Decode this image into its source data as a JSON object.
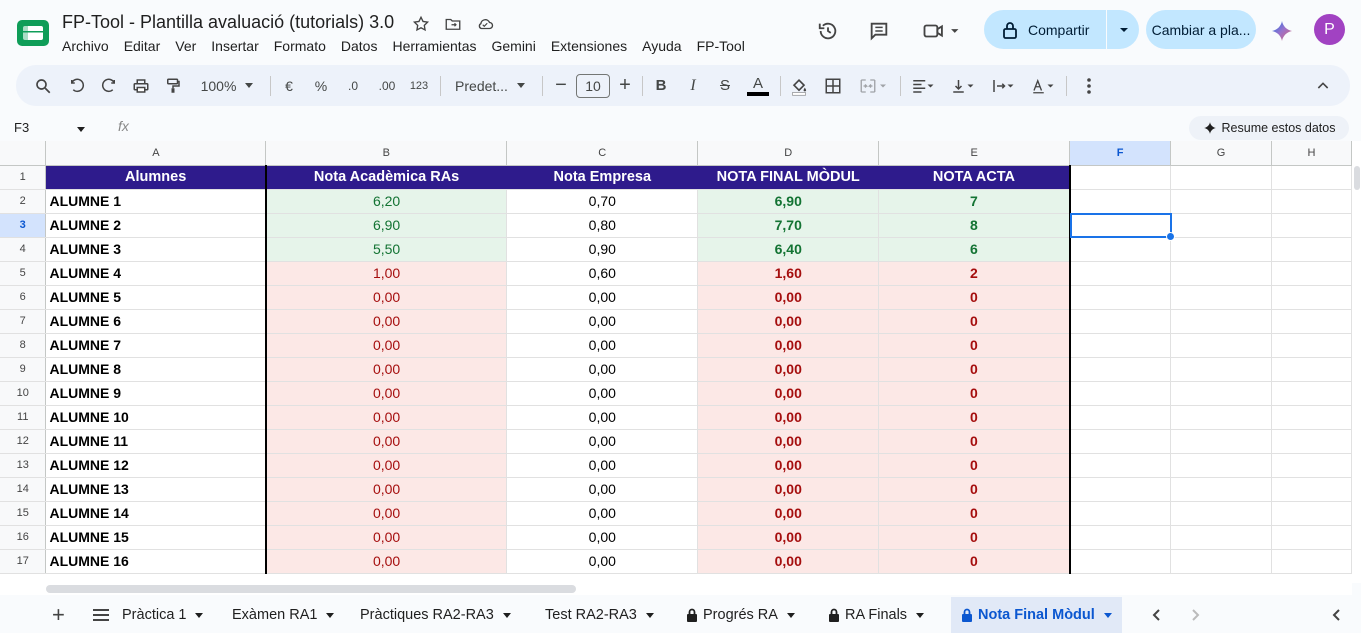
{
  "app": {
    "doc_title": "FP-Tool - Plantilla avaluació (tutorials) 3.0",
    "menu": [
      "Archivo",
      "Editar",
      "Ver",
      "Insertar",
      "Formato",
      "Datos",
      "Herramientas",
      "Gemini",
      "Extensiones",
      "Ayuda",
      "FP-Tool"
    ],
    "share_label": "Compartir",
    "switch_label": "Cambiar a pla...",
    "avatar_initial": "P"
  },
  "toolbar": {
    "zoom": "100%",
    "currency": "€",
    "percent": "%",
    "dec_less": ".0",
    "dec_more": ".00",
    "number_format": "123",
    "font": "Predet...",
    "font_size": "10",
    "bold": "B",
    "italic": "I",
    "strike": "S",
    "text_color": "A"
  },
  "formula_bar": {
    "name_box": "F3",
    "fx": "fx",
    "summarize": "Resume estos datos"
  },
  "grid": {
    "columns": [
      "A",
      "B",
      "C",
      "D",
      "E",
      "F",
      "G",
      "H"
    ],
    "headers": [
      "Alumnes",
      "Nota Acadèmica RAs",
      "Nota Empresa",
      "NOTA FINAL MÒDUL",
      "NOTA ACTA"
    ],
    "rows": [
      {
        "num": "2",
        "name": "ALUMNE 1",
        "b": "6,20",
        "c": "0,70",
        "d": "6,90",
        "e": "7",
        "status": "pass"
      },
      {
        "num": "3",
        "name": "ALUMNE 2",
        "b": "6,90",
        "c": "0,80",
        "d": "7,70",
        "e": "8",
        "status": "pass"
      },
      {
        "num": "4",
        "name": "ALUMNE 3",
        "b": "5,50",
        "c": "0,90",
        "d": "6,40",
        "e": "6",
        "status": "pass"
      },
      {
        "num": "5",
        "name": "ALUMNE 4",
        "b": "1,00",
        "c": "0,60",
        "d": "1,60",
        "e": "2",
        "status": "fail"
      },
      {
        "num": "6",
        "name": "ALUMNE 5",
        "b": "0,00",
        "c": "0,00",
        "d": "0,00",
        "e": "0",
        "status": "fail"
      },
      {
        "num": "7",
        "name": "ALUMNE 6",
        "b": "0,00",
        "c": "0,00",
        "d": "0,00",
        "e": "0",
        "status": "fail"
      },
      {
        "num": "8",
        "name": "ALUMNE 7",
        "b": "0,00",
        "c": "0,00",
        "d": "0,00",
        "e": "0",
        "status": "fail"
      },
      {
        "num": "9",
        "name": "ALUMNE 8",
        "b": "0,00",
        "c": "0,00",
        "d": "0,00",
        "e": "0",
        "status": "fail"
      },
      {
        "num": "10",
        "name": "ALUMNE 9",
        "b": "0,00",
        "c": "0,00",
        "d": "0,00",
        "e": "0",
        "status": "fail"
      },
      {
        "num": "11",
        "name": "ALUMNE 10",
        "b": "0,00",
        "c": "0,00",
        "d": "0,00",
        "e": "0",
        "status": "fail"
      },
      {
        "num": "12",
        "name": "ALUMNE 11",
        "b": "0,00",
        "c": "0,00",
        "d": "0,00",
        "e": "0",
        "status": "fail"
      },
      {
        "num": "13",
        "name": "ALUMNE 12",
        "b": "0,00",
        "c": "0,00",
        "d": "0,00",
        "e": "0",
        "status": "fail"
      },
      {
        "num": "14",
        "name": "ALUMNE 13",
        "b": "0,00",
        "c": "0,00",
        "d": "0,00",
        "e": "0",
        "status": "fail"
      },
      {
        "num": "15",
        "name": "ALUMNE 14",
        "b": "0,00",
        "c": "0,00",
        "d": "0,00",
        "e": "0",
        "status": "fail"
      },
      {
        "num": "16",
        "name": "ALUMNE 15",
        "b": "0,00",
        "c": "0,00",
        "d": "0,00",
        "e": "0",
        "status": "fail"
      },
      {
        "num": "17",
        "name": "ALUMNE 16",
        "b": "0,00",
        "c": "0,00",
        "d": "0,00",
        "e": "0",
        "status": "fail"
      }
    ],
    "selected_cell": "F3"
  },
  "sheets": {
    "tabs": [
      {
        "label": "Pràctica 1",
        "locked": false
      },
      {
        "label": "Exàmen RA1",
        "locked": false
      },
      {
        "label": "Pràctiques RA2-RA3",
        "locked": false
      },
      {
        "label": "Test RA2-RA3",
        "locked": false
      },
      {
        "label": "Progrés RA",
        "locked": true
      },
      {
        "label": "RA Finals",
        "locked": true
      },
      {
        "label": "Nota Final Mòdul",
        "locked": true,
        "active": true
      }
    ]
  },
  "colors": {
    "header_bg": "#2e1b8c",
    "pass_bg": "#e6f4ea",
    "pass_text": "#137333",
    "fail_bg": "#fce8e6",
    "fail_text": "#a50e0e",
    "accent": "#0b57d0"
  }
}
